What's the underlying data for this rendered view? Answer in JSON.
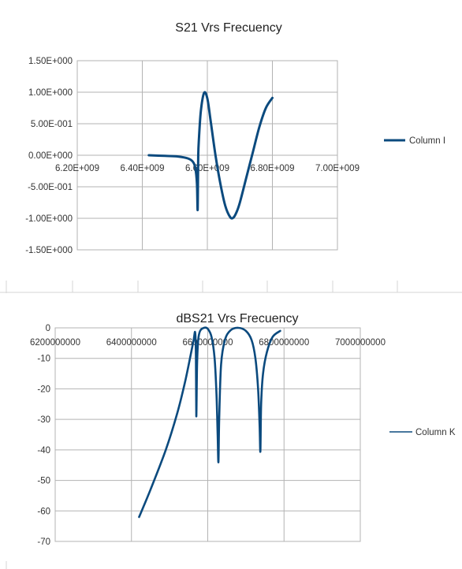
{
  "chart_data": [
    {
      "type": "line",
      "title": "S21 Vrs Frecuency",
      "xlim": [
        6200000000,
        7000000000
      ],
      "ylim": [
        -1.5,
        1.5
      ],
      "x_ticks": [
        "6.20E+009",
        "6.40E+009",
        "6.60E+009",
        "6.80E+009",
        "7.00E+009"
      ],
      "y_ticks": [
        "1.50E+000",
        "1.00E+000",
        "5.00E-001",
        "0.00E+000",
        "-5.00E-001",
        "-1.00E+000",
        "-1.50E+000"
      ],
      "grid": true,
      "legend_position": "right",
      "color": "#0b4a7e",
      "series": [
        {
          "name": "Column I",
          "x": [
            6420000000,
            6470000000,
            6510000000,
            6540000000,
            6555000000,
            6563000000,
            6568000000,
            6570000000,
            6571000000,
            6572000000,
            6574000000,
            6580000000,
            6590000000,
            6600000000,
            6610000000,
            6625000000,
            6640000000,
            6655000000,
            6670000000,
            6680000000,
            6690000000,
            6700000000,
            6720000000,
            6740000000,
            6760000000,
            6780000000,
            6800000000
          ],
          "y": [
            0.0,
            -0.01,
            -0.02,
            -0.05,
            -0.1,
            -0.2,
            -0.45,
            -0.87,
            -0.5,
            0.0,
            0.25,
            0.7,
            0.99,
            0.9,
            0.55,
            0.0,
            -0.45,
            -0.8,
            -0.98,
            -0.99,
            -0.9,
            -0.75,
            -0.35,
            0.05,
            0.45,
            0.75,
            0.91
          ]
        }
      ]
    },
    {
      "type": "line",
      "title": "dBS21 Vrs Frecuency",
      "xlim": [
        6200000000,
        7000000000
      ],
      "ylim": [
        -70,
        0
      ],
      "x_ticks": [
        "6200000000",
        "6400000000",
        "6600000000",
        "6800000000",
        "7000000000"
      ],
      "y_ticks": [
        "0",
        "-10",
        "-20",
        "-30",
        "-40",
        "-50",
        "-60",
        "-70"
      ],
      "grid": true,
      "legend_position": "right",
      "color": "#0b4a7e",
      "series": [
        {
          "name": "Column K",
          "x": [
            6420000000,
            6450000000,
            6490000000,
            6520000000,
            6540000000,
            6555000000,
            6563000000,
            6567000000,
            6569000000,
            6570000000,
            6572000000,
            6575000000,
            6580000000,
            6590000000,
            6600000000,
            6610000000,
            6618000000,
            6623000000,
            6626000000,
            6628000000,
            6630000000,
            6635000000,
            6645000000,
            6660000000,
            6680000000,
            6700000000,
            6715000000,
            6725000000,
            6732000000,
            6736000000,
            6738000000,
            6740000000,
            6745000000,
            6755000000,
            6770000000,
            6790000000
          ],
          "y": [
            -62,
            -53,
            -40,
            -28,
            -18,
            -9,
            -4,
            -1.5,
            -9,
            -29,
            -12,
            -4,
            -1,
            0,
            -0.3,
            -3,
            -10,
            -22,
            -35,
            -44,
            -30,
            -12,
            -4,
            -0.8,
            0,
            -1,
            -4,
            -10,
            -20,
            -32,
            -40.5,
            -25,
            -15,
            -8,
            -3,
            -1
          ]
        }
      ]
    }
  ]
}
